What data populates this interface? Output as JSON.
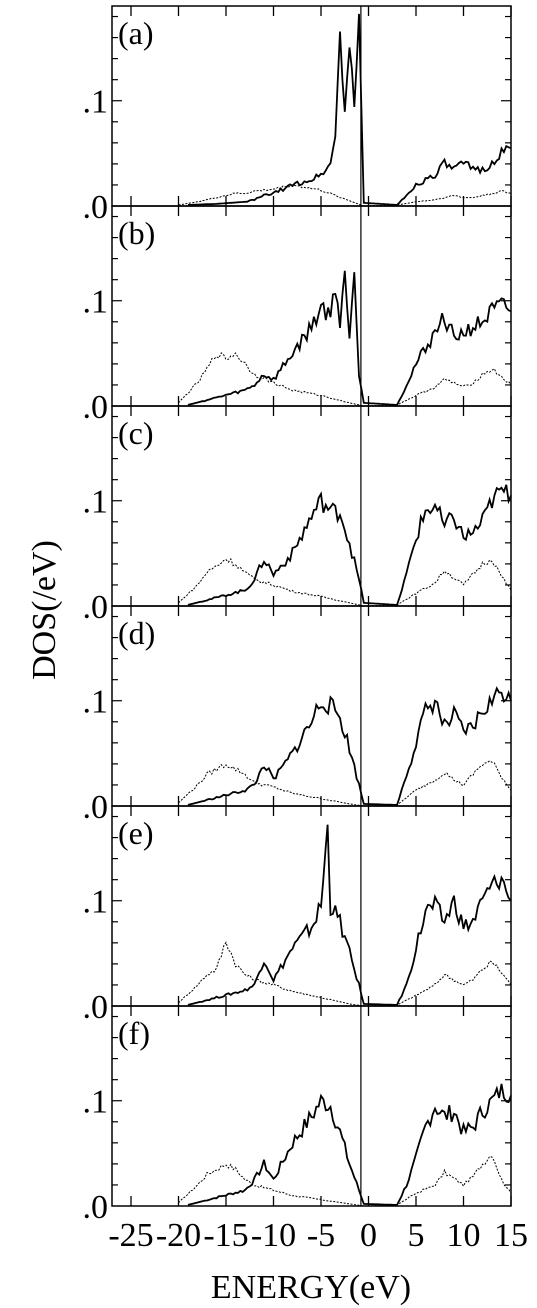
{
  "chart_data": {
    "type": "line",
    "xlabel": "ENERGY(eV)",
    "ylabel": "DOS(/eV)",
    "xlim": [
      -27,
      15
    ],
    "ylim": [
      0,
      0.19
    ],
    "x_ticks": [
      -25,
      -20,
      -15,
      -10,
      -5,
      0,
      5,
      10,
      15
    ],
    "x_tick_labels": [
      "-25",
      "-20",
      "-15",
      "-10",
      "-5",
      "0",
      "5",
      "10",
      "15"
    ],
    "y_ticks": [
      0,
      0.1
    ],
    "y_tick_labels": [
      ".0",
      ".1"
    ],
    "vertical_line_x": -0.8,
    "panels": [
      {
        "label": "(f)",
        "solid": {
          "x": [
            -19,
            -16,
            -13,
            -12,
            -11,
            -10,
            -8,
            -6,
            -5,
            -4,
            -3,
            -2,
            -1,
            -0.5,
            3,
            4,
            5,
            6,
            7,
            8,
            9,
            10,
            11,
            12,
            13,
            14,
            15
          ],
          "y": [
            0.001,
            0.008,
            0.015,
            0.025,
            0.04,
            0.025,
            0.06,
            0.085,
            0.1,
            0.095,
            0.07,
            0.04,
            0.015,
            0.002,
            0.001,
            0.02,
            0.045,
            0.075,
            0.095,
            0.085,
            0.09,
            0.07,
            0.075,
            0.09,
            0.1,
            0.11,
            0.105
          ]
        },
        "dotted": {
          "x": [
            -20,
            -18,
            -17,
            -16,
            -15,
            -14,
            -13,
            -12,
            -10,
            -8,
            -5,
            -2,
            -0.5,
            3,
            5,
            7,
            8,
            9,
            10,
            11,
            12,
            13,
            14,
            15
          ],
          "y": [
            0.003,
            0.02,
            0.03,
            0.035,
            0.04,
            0.035,
            0.025,
            0.02,
            0.015,
            0.01,
            0.006,
            0.002,
            0,
            0.001,
            0.012,
            0.02,
            0.032,
            0.026,
            0.02,
            0.028,
            0.04,
            0.05,
            0.025,
            0.012
          ]
        }
      },
      {
        "label": "(e)",
        "solid": {
          "x": [
            -19,
            -16,
            -13,
            -12,
            -11,
            -10,
            -8,
            -6,
            -5,
            -4.3,
            -4,
            -3,
            -2,
            -1,
            -0.5,
            3,
            4,
            5,
            6,
            7,
            8,
            9,
            10,
            11,
            12,
            13,
            14,
            15
          ],
          "y": [
            0.001,
            0.008,
            0.015,
            0.02,
            0.045,
            0.025,
            0.055,
            0.075,
            0.095,
            0.17,
            0.095,
            0.08,
            0.05,
            0.02,
            0.002,
            0.001,
            0.02,
            0.055,
            0.09,
            0.095,
            0.08,
            0.1,
            0.075,
            0.08,
            0.1,
            0.115,
            0.12,
            0.1
          ]
        },
        "dotted": {
          "x": [
            -20,
            -18,
            -17,
            -16,
            -15,
            -14,
            -13,
            -12,
            -10,
            -8,
            -5,
            -2,
            -0.5,
            3,
            5,
            7,
            8,
            9,
            10,
            11,
            12,
            13,
            14,
            15
          ],
          "y": [
            0.003,
            0.02,
            0.03,
            0.035,
            0.062,
            0.04,
            0.03,
            0.025,
            0.02,
            0.014,
            0.008,
            0.002,
            0,
            0.001,
            0.01,
            0.02,
            0.03,
            0.025,
            0.02,
            0.025,
            0.035,
            0.042,
            0.032,
            0.02
          ]
        }
      },
      {
        "label": "(d)",
        "solid": {
          "x": [
            -19,
            -16,
            -13,
            -12,
            -11,
            -10,
            -8,
            -6,
            -5,
            -4,
            -3,
            -2,
            -1,
            -0.5,
            3,
            4,
            5,
            6,
            7,
            8,
            9,
            10,
            11,
            12,
            13,
            14,
            15
          ],
          "y": [
            0.001,
            0.008,
            0.015,
            0.02,
            0.04,
            0.025,
            0.05,
            0.08,
            0.1,
            0.095,
            0.085,
            0.055,
            0.02,
            0.002,
            0.001,
            0.03,
            0.06,
            0.09,
            0.1,
            0.075,
            0.085,
            0.07,
            0.075,
            0.09,
            0.1,
            0.11,
            0.1
          ]
        },
        "dotted": {
          "x": [
            -20,
            -18,
            -17,
            -16,
            -15,
            -14,
            -13,
            -12,
            -10,
            -8,
            -5,
            -2,
            -0.5,
            3,
            5,
            7,
            8,
            9,
            10,
            11,
            12,
            13,
            14,
            15
          ],
          "y": [
            0.003,
            0.02,
            0.03,
            0.035,
            0.04,
            0.035,
            0.03,
            0.022,
            0.018,
            0.012,
            0.007,
            0.002,
            0,
            0.001,
            0.015,
            0.025,
            0.032,
            0.025,
            0.02,
            0.03,
            0.04,
            0.042,
            0.028,
            0.015
          ]
        }
      },
      {
        "label": "(c)",
        "solid": {
          "x": [
            -19,
            -16,
            -13,
            -12,
            -11,
            -10,
            -8,
            -6,
            -5,
            -4,
            -3,
            -2,
            -1,
            -0.5,
            3,
            4,
            5,
            6,
            7,
            8,
            9,
            10,
            11,
            12,
            13,
            14,
            15
          ],
          "y": [
            0.001,
            0.008,
            0.015,
            0.025,
            0.045,
            0.03,
            0.05,
            0.085,
            0.1,
            0.09,
            0.09,
            0.06,
            0.025,
            0.003,
            0.001,
            0.03,
            0.065,
            0.09,
            0.095,
            0.075,
            0.085,
            0.065,
            0.07,
            0.08,
            0.1,
            0.11,
            0.105
          ]
        },
        "dotted": {
          "x": [
            -20,
            -18,
            -17,
            -16,
            -15,
            -14,
            -13,
            -12,
            -10,
            -8,
            -5,
            -2,
            -0.5,
            3,
            5,
            7,
            8,
            9,
            10,
            11,
            12,
            13,
            14,
            15
          ],
          "y": [
            0.003,
            0.02,
            0.032,
            0.038,
            0.045,
            0.04,
            0.032,
            0.025,
            0.02,
            0.014,
            0.009,
            0.003,
            0,
            0.001,
            0.012,
            0.022,
            0.034,
            0.027,
            0.02,
            0.03,
            0.04,
            0.045,
            0.028,
            0.015
          ]
        }
      },
      {
        "label": "(b)",
        "solid": {
          "x": [
            -19,
            -16,
            -13,
            -12,
            -11,
            -10,
            -8,
            -6,
            -5,
            -4,
            -3.5,
            -3,
            -2.5,
            -2,
            -1.5,
            -1,
            -0.5,
            3,
            4,
            5,
            6,
            7,
            8,
            9,
            10,
            11,
            12,
            13,
            14,
            15
          ],
          "y": [
            0.001,
            0.008,
            0.015,
            0.02,
            0.03,
            0.025,
            0.05,
            0.075,
            0.095,
            0.085,
            0.115,
            0.08,
            0.13,
            0.06,
            0.135,
            0.03,
            0.003,
            0.001,
            0.02,
            0.04,
            0.055,
            0.07,
            0.085,
            0.065,
            0.07,
            0.075,
            0.08,
            0.09,
            0.095,
            0.09
          ]
        },
        "dotted": {
          "x": [
            -20,
            -18,
            -17,
            -16,
            -15,
            -14,
            -13,
            -12,
            -10,
            -8,
            -5,
            -2,
            -0.5,
            3,
            5,
            7,
            8,
            9,
            10,
            11,
            12,
            13,
            14,
            15
          ],
          "y": [
            0.003,
            0.022,
            0.035,
            0.05,
            0.045,
            0.05,
            0.04,
            0.03,
            0.022,
            0.015,
            0.01,
            0.003,
            0,
            0.001,
            0.01,
            0.018,
            0.025,
            0.022,
            0.018,
            0.022,
            0.03,
            0.035,
            0.028,
            0.02
          ]
        }
      },
      {
        "label": "(a)",
        "solid": {
          "x": [
            -19,
            -16,
            -13,
            -12,
            -11,
            -10,
            -8,
            -6,
            -5,
            -4,
            -3.5,
            -3,
            -2.5,
            -2,
            -1.5,
            -1,
            -0.5,
            3,
            4,
            5,
            6,
            7,
            8,
            9,
            10,
            11,
            12,
            13,
            14,
            15
          ],
          "y": [
            0.001,
            0.002,
            0.004,
            0.006,
            0.01,
            0.012,
            0.02,
            0.025,
            0.03,
            0.04,
            0.065,
            0.165,
            0.09,
            0.15,
            0.1,
            0.175,
            0.003,
            0.001,
            0.01,
            0.02,
            0.025,
            0.03,
            0.04,
            0.035,
            0.04,
            0.035,
            0.035,
            0.04,
            0.05,
            0.055
          ]
        },
        "dotted": {
          "x": [
            -20,
            -18,
            -17,
            -16,
            -15,
            -14,
            -13,
            -12,
            -10,
            -8,
            -5,
            -2,
            -0.5,
            3,
            5,
            7,
            8,
            9,
            10,
            11,
            12,
            13,
            14,
            15
          ],
          "y": [
            0.001,
            0.004,
            0.006,
            0.008,
            0.01,
            0.012,
            0.012,
            0.014,
            0.016,
            0.02,
            0.015,
            0.005,
            0,
            0.001,
            0.004,
            0.006,
            0.008,
            0.01,
            0.008,
            0.008,
            0.01,
            0.012,
            0.014,
            0.012
          ]
        }
      }
    ]
  }
}
